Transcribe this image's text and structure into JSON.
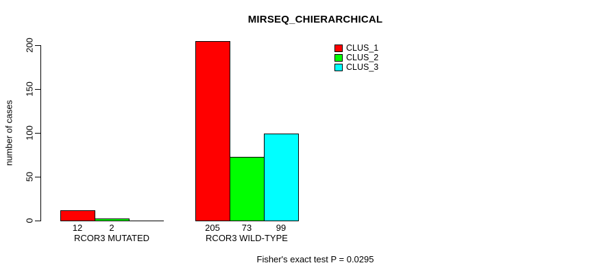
{
  "title": "MIRSEQ_CHIERARCHICAL",
  "footer_note": "Fisher's exact test P = 0.0295",
  "colors": {
    "clus_1": "#ff0000",
    "clus_2": "#00ff00",
    "clus_3": "#00ffff",
    "axis": "#000000",
    "background": "#ffffff"
  },
  "chart_data": {
    "type": "bar",
    "title": "MIRSEQ_CHIERARCHICAL",
    "xlabel": "",
    "ylabel": "number of cases",
    "categories": [
      "RCOR3 MUTATED",
      "RCOR3 WILD-TYPE"
    ],
    "series": [
      {
        "name": "CLUS_1",
        "color": "#ff0000",
        "values": [
          12,
          205
        ]
      },
      {
        "name": "CLUS_2",
        "color": "#00ff00",
        "values": [
          2,
          73
        ]
      },
      {
        "name": "CLUS_3",
        "color": "#00ffff",
        "values": [
          0,
          99
        ]
      }
    ],
    "value_labels": [
      [
        "12",
        "2",
        ""
      ],
      [
        "205",
        "73",
        "99"
      ]
    ],
    "yticks": [
      0,
      50,
      100,
      150,
      200
    ],
    "ylim": [
      0,
      205
    ],
    "grid": false,
    "legend_position": "top-right",
    "annotation": "Fisher's exact test P = 0.0295"
  }
}
